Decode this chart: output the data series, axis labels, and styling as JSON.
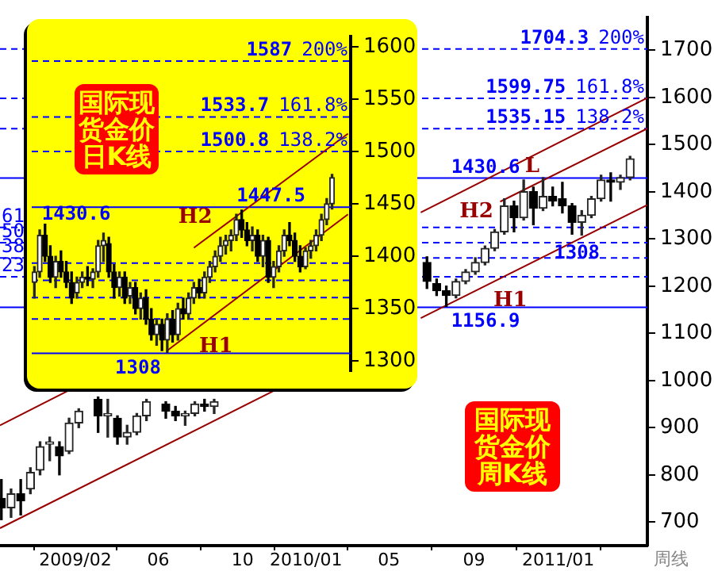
{
  "chart_data": [
    {
      "type": "candlestick",
      "title": "国际现货金价周K线",
      "xlabel": "周线",
      "x": [
        "2008-10-17",
        "2008-10-31",
        "2008-11-14",
        "2008-11-28",
        "2008-12-12",
        "2008-12-26",
        "2009-01-09",
        "2009-01-23",
        "2009-02-06",
        "2009-03-06",
        "2009-03-20",
        "2009-04-03",
        "2009-04-17",
        "2009-05-01",
        "2009-05-15",
        "2009-06-12",
        "2009-06-26",
        "2009-07-10",
        "2009-07-24",
        "2009-08-07",
        "2009-08-21",
        "2010-06-25",
        "2010-07-09",
        "2010-07-23",
        "2010-08-06",
        "2010-08-20",
        "2010-09-03",
        "2010-09-17",
        "2010-10-01",
        "2010-10-15",
        "2010-10-29",
        "2010-11-12",
        "2010-11-26",
        "2010-12-10",
        "2010-12-24",
        "2011-01-07",
        "2011-01-21",
        "2011-02-04",
        "2011-02-18",
        "2011-03-04",
        "2011-03-18",
        "2011-04-01",
        "2011-04-15"
      ],
      "ohlc": [
        [
          750,
          790,
          705,
          730
        ],
        [
          730,
          770,
          710,
          760
        ],
        [
          760,
          790,
          715,
          745
        ],
        [
          770,
          815,
          760,
          805
        ],
        [
          810,
          870,
          800,
          860
        ],
        [
          865,
          880,
          830,
          870
        ],
        [
          860,
          870,
          800,
          840
        ],
        [
          850,
          920,
          845,
          910
        ],
        [
          910,
          940,
          900,
          935
        ],
        [
          960,
          965,
          890,
          925
        ],
        [
          925,
          960,
          880,
          930
        ],
        [
          920,
          925,
          865,
          880
        ],
        [
          880,
          905,
          865,
          890
        ],
        [
          890,
          930,
          885,
          925
        ],
        [
          925,
          960,
          915,
          955
        ],
        [
          950,
          955,
          920,
          935
        ],
        [
          935,
          945,
          915,
          925
        ],
        [
          925,
          935,
          905,
          930
        ],
        [
          930,
          955,
          925,
          950
        ],
        [
          950,
          960,
          935,
          945
        ],
        [
          945,
          960,
          930,
          955
        ],
        [
          1250,
          1262,
          1195,
          1210
        ],
        [
          1205,
          1215,
          1180,
          1190
        ],
        [
          1190,
          1200,
          1157,
          1180
        ],
        [
          1180,
          1215,
          1175,
          1210
        ],
        [
          1210,
          1235,
          1205,
          1230
        ],
        [
          1230,
          1260,
          1225,
          1250
        ],
        [
          1250,
          1285,
          1245,
          1280
        ],
        [
          1280,
          1320,
          1275,
          1315
        ],
        [
          1315,
          1385,
          1310,
          1370
        ],
        [
          1370,
          1380,
          1315,
          1345
        ],
        [
          1345,
          1425,
          1340,
          1400
        ],
        [
          1400,
          1410,
          1330,
          1365
        ],
        [
          1365,
          1430,
          1360,
          1390
        ],
        [
          1390,
          1410,
          1370,
          1380
        ],
        [
          1385,
          1420,
          1355,
          1370
        ],
        [
          1370,
          1375,
          1310,
          1335
        ],
        [
          1335,
          1360,
          1308,
          1350
        ],
        [
          1350,
          1390,
          1345,
          1385
        ],
        [
          1385,
          1435,
          1380,
          1425
        ],
        [
          1425,
          1440,
          1380,
          1420
        ],
        [
          1420,
          1435,
          1405,
          1430
        ],
        [
          1430,
          1475,
          1425,
          1470
        ]
      ],
      "xlim": [
        "2008-10-15",
        "2011-05-10"
      ],
      "xticks": [
        {
          "value": "2009-02",
          "label": "2009/02"
        },
        {
          "value": "2009-06",
          "label": "06"
        },
        {
          "value": "2009-10",
          "label": "10"
        },
        {
          "value": "2010-01",
          "label": "2010/01"
        },
        {
          "value": "2010-05",
          "label": "05"
        },
        {
          "value": "2010-09",
          "label": "09"
        },
        {
          "value": "2011-01",
          "label": "2011/01"
        }
      ],
      "ylim": [
        650,
        1770
      ],
      "yticks": [
        700,
        800,
        900,
        1000,
        1100,
        1200,
        1300,
        1400,
        1500,
        1600,
        1700
      ],
      "series": [
        {
          "type": "line",
          "color": "#990000",
          "x": [
            "2008-10-15",
            "2009-11-22"
          ],
          "values": [
            687,
            983
          ]
        },
        {
          "type": "line",
          "color": "#990000",
          "x": [
            "2008-10-15",
            "2009-01-28"
          ],
          "values": [
            905,
            983
          ]
        },
        {
          "type": "line",
          "name": "H2",
          "color": "#990000",
          "x": [
            "2010-06-16",
            "2011-05-10"
          ],
          "values": [
            1356,
            1599
          ]
        },
        {
          "type": "line",
          "name": "L",
          "color": "#990000",
          "x": [
            "2010-10-09",
            "2011-05-10"
          ],
          "values": [
            1379,
            1534
          ]
        },
        {
          "type": "line",
          "name": "H1",
          "color": "#990000",
          "x": [
            "2010-06-16",
            "2011-05-10"
          ],
          "values": [
            1132,
            1372
          ]
        }
      ],
      "ref_lines": [
        {
          "axis": "y",
          "value": 1704.3,
          "label": "1704.3",
          "color": "#0000ff",
          "line_style": "dashed"
        },
        {
          "axis": "y",
          "value": 1599.75,
          "label": "1599.75",
          "color": "#0000ff",
          "line_style": "dashed"
        },
        {
          "axis": "y",
          "value": 1535.15,
          "label": "1535.15",
          "color": "#0000ff",
          "line_style": "dashed"
        },
        {
          "axis": "y",
          "value": 1430.6,
          "label": "1430.6",
          "color": "#0000ff",
          "line_style": "solid"
        },
        {
          "axis": "y",
          "value": 1326,
          "color": "#0000ff",
          "line_style": "dashed"
        },
        {
          "axis": "y",
          "value": 1293.75,
          "color": "#0000ff",
          "line_style": "dashed"
        },
        {
          "axis": "y",
          "value": 1261.5,
          "color": "#0000ff",
          "line_style": "dashed"
        },
        {
          "axis": "y",
          "value": 1221.5,
          "color": "#0000ff",
          "line_style": "dashed"
        },
        {
          "axis": "y",
          "value": 1156.9,
          "label": "1156.9",
          "color": "#0000ff",
          "line_style": "solid"
        }
      ],
      "annotations": [
        {
          "text": "1308",
          "x": "2011-01-28",
          "y": 1308
        },
        {
          "text": "200%",
          "y": 1704.3
        },
        {
          "text": "161.8%",
          "y": 1599.75
        },
        {
          "text": "138.2%",
          "y": 1535.15
        },
        {
          "text": "61",
          "y": 1326
        },
        {
          "text": "50",
          "y": 1293.75
        },
        {
          "text": "38",
          "y": 1261.5
        },
        {
          "text": "23",
          "y": 1221.5
        }
      ]
    },
    {
      "type": "candlestick",
      "title": "国际现货金价日K线",
      "tick_labels": "y",
      "categories": [
        null,
        null,
        null,
        null,
        null,
        null,
        null,
        null,
        null,
        null,
        null,
        null,
        null,
        null,
        null,
        null,
        null,
        null,
        null,
        null,
        null,
        null,
        null,
        null,
        null,
        null,
        null,
        null,
        null,
        null,
        null,
        null,
        null,
        null,
        null,
        null,
        null,
        null,
        null,
        null,
        null,
        null,
        null,
        null,
        null,
        null,
        null,
        null,
        null,
        null,
        null,
        null,
        null,
        null,
        null,
        null,
        null,
        null,
        null,
        null
      ],
      "ohlc": [
        [
          1375,
          1390,
          1360,
          1385
        ],
        [
          1385,
          1425,
          1380,
          1420
        ],
        [
          1420,
          1430.6,
          1395,
          1400
        ],
        [
          1400,
          1410,
          1375,
          1380
        ],
        [
          1380,
          1400,
          1370,
          1395
        ],
        [
          1395,
          1405,
          1380,
          1385
        ],
        [
          1385,
          1395,
          1370,
          1375
        ],
        [
          1375,
          1385,
          1355,
          1360
        ],
        [
          1365,
          1380,
          1360,
          1375
        ],
        [
          1375,
          1385,
          1370,
          1380
        ],
        [
          1380,
          1390,
          1372,
          1378
        ],
        [
          1378,
          1388,
          1370,
          1385
        ],
        [
          1385,
          1415,
          1380,
          1410
        ],
        [
          1410,
          1422,
          1395,
          1415
        ],
        [
          1412,
          1418,
          1380,
          1385
        ],
        [
          1385,
          1392,
          1360,
          1370
        ],
        [
          1370,
          1385,
          1362,
          1380
        ],
        [
          1380,
          1385,
          1355,
          1360
        ],
        [
          1362,
          1375,
          1355,
          1370
        ],
        [
          1370,
          1375,
          1345,
          1350
        ],
        [
          1350,
          1365,
          1340,
          1360
        ],
        [
          1360,
          1368,
          1335,
          1340
        ],
        [
          1340,
          1350,
          1320,
          1325
        ],
        [
          1325,
          1340,
          1315,
          1335
        ],
        [
          1335,
          1340,
          1310,
          1320
        ],
        [
          1320,
          1345,
          1308,
          1340
        ],
        [
          1340,
          1348,
          1318,
          1325
        ],
        [
          1325,
          1355,
          1320,
          1350
        ],
        [
          1350,
          1360,
          1340,
          1345
        ],
        [
          1345,
          1365,
          1340,
          1360
        ],
        [
          1360,
          1375,
          1355,
          1370
        ],
        [
          1370,
          1378,
          1360,
          1365
        ],
        [
          1365,
          1385,
          1360,
          1380
        ],
        [
          1380,
          1395,
          1375,
          1390
        ],
        [
          1390,
          1405,
          1385,
          1400
        ],
        [
          1400,
          1418,
          1395,
          1410
        ],
        [
          1410,
          1420,
          1402,
          1415
        ],
        [
          1415,
          1425,
          1405,
          1420
        ],
        [
          1420,
          1440,
          1415,
          1435
        ],
        [
          1435,
          1444,
          1418,
          1425
        ],
        [
          1425,
          1432,
          1410,
          1415
        ],
        [
          1415,
          1428,
          1405,
          1420
        ],
        [
          1420,
          1425,
          1395,
          1400
        ],
        [
          1400,
          1420,
          1390,
          1415
        ],
        [
          1415,
          1418,
          1375,
          1380
        ],
        [
          1380,
          1395,
          1370,
          1390
        ],
        [
          1390,
          1410,
          1385,
          1405
        ],
        [
          1405,
          1425,
          1400,
          1420
        ],
        [
          1420,
          1432,
          1410,
          1415
        ],
        [
          1415,
          1422,
          1395,
          1400
        ],
        [
          1400,
          1410,
          1385,
          1390
        ],
        [
          1390,
          1408,
          1388,
          1405
        ],
        [
          1405,
          1415,
          1398,
          1410
        ],
        [
          1410,
          1425,
          1405,
          1420
        ],
        [
          1420,
          1440,
          1415,
          1435
        ],
        [
          1435,
          1455,
          1430,
          1450
        ],
        [
          1450,
          1478,
          1445,
          1475
        ],
        null,
        null,
        null
      ],
      "ylim": [
        1290,
        1610
      ],
      "yticks": [
        1300,
        1350,
        1400,
        1450,
        1500,
        1550,
        1600
      ],
      "series": [
        {
          "type": "line",
          "name": "H1",
          "color": "#990000",
          "values": [
            null,
            null,
            null,
            null,
            null,
            null,
            null,
            null,
            null,
            null,
            null,
            null,
            null,
            null,
            null,
            null,
            null,
            null,
            null,
            null,
            null,
            null,
            null,
            null,
            null,
            1310,
            null,
            null,
            null,
            null,
            null,
            null,
            null,
            null,
            null,
            null,
            null,
            null,
            null,
            null,
            null,
            null,
            null,
            null,
            null,
            null,
            null,
            null,
            null,
            null,
            null,
            null,
            null,
            null,
            null,
            null,
            null,
            null,
            null,
            1440
          ]
        },
        {
          "type": "line",
          "name": "H2",
          "color": "#990000",
          "values": [
            null,
            null,
            null,
            null,
            null,
            null,
            null,
            null,
            null,
            null,
            null,
            null,
            null,
            null,
            null,
            null,
            null,
            null,
            null,
            null,
            null,
            null,
            null,
            null,
            null,
            null,
            null,
            null,
            null,
            null,
            1408,
            null,
            null,
            null,
            null,
            null,
            null,
            null,
            null,
            null,
            null,
            null,
            null,
            null,
            null,
            null,
            null,
            null,
            null,
            null,
            null,
            null,
            null,
            null,
            null,
            null,
            null,
            null,
            null,
            1517
          ]
        }
      ],
      "ref_lines": [
        {
          "axis": "y",
          "value": 1587,
          "label": "1587",
          "color": "#0000ff",
          "line_style": "dashed"
        },
        {
          "axis": "y",
          "value": 1533.7,
          "label": "1533.7",
          "color": "#0000ff",
          "line_style": "dashed"
        },
        {
          "axis": "y",
          "value": 1500.8,
          "label": "1500.8",
          "color": "#0000ff",
          "line_style": "dashed"
        },
        {
          "axis": "y",
          "value": 1447.5,
          "label": "1447.5",
          "color": "#0000ff",
          "line_style": "solid"
        },
        {
          "axis": "y",
          "value": 1394.2,
          "color": "#0000ff",
          "line_style": "dashed"
        },
        {
          "axis": "y",
          "value": 1377.75,
          "color": "#0000ff",
          "line_style": "dashed"
        },
        {
          "axis": "y",
          "value": 1361.3,
          "color": "#0000ff",
          "line_style": "dashed"
        },
        {
          "axis": "y",
          "value": 1340.9,
          "color": "#0000ff",
          "line_style": "dashed"
        },
        {
          "axis": "y",
          "value": 1308,
          "color": "#0000ff",
          "line_style": "solid"
        }
      ],
      "annotations": [
        {
          "text": "1430.6",
          "y": 1430.6
        },
        {
          "text": "1308",
          "y": 1308
        },
        {
          "text": "200%",
          "y": 1587
        },
        {
          "text": "161.8%",
          "y": 1533.7
        },
        {
          "text": "138.2%",
          "y": 1500.8
        }
      ]
    }
  ]
}
